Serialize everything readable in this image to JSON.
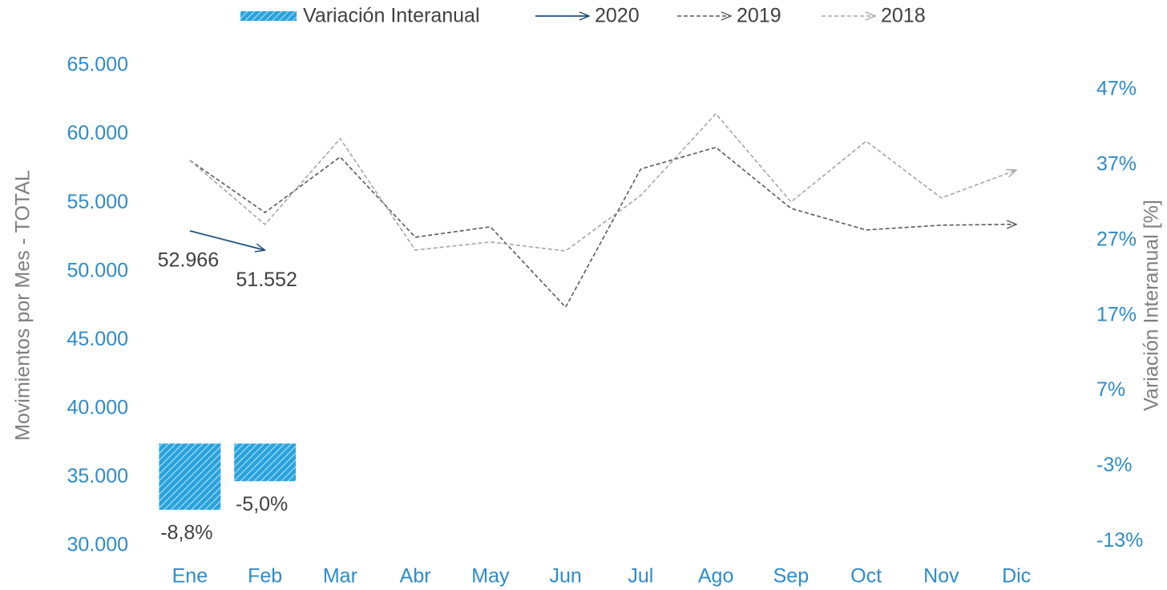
{
  "chart_data": {
    "type": "line",
    "categories": [
      "Ene",
      "Feb",
      "Mar",
      "Abr",
      "May",
      "Jun",
      "Jul",
      "Ago",
      "Sep",
      "Oct",
      "Nov",
      "Dic"
    ],
    "ylabel": "Movimientos por Mes - TOTAL",
    "y2label": "Variación Interanual [%]",
    "ylim": [
      30000,
      65000
    ],
    "yticks": [
      {
        "value": 30000,
        "label": "30.000"
      },
      {
        "value": 35000,
        "label": "35.000"
      },
      {
        "value": 40000,
        "label": "40.000"
      },
      {
        "value": 45000,
        "label": "45.000"
      },
      {
        "value": 50000,
        "label": "50.000"
      },
      {
        "value": 55000,
        "label": "55.000"
      },
      {
        "value": 60000,
        "label": "60.000"
      },
      {
        "value": 65000,
        "label": "65.000"
      }
    ],
    "y2lim": [
      -13.6,
      50.2
    ],
    "y2ticks": [
      {
        "value": -13,
        "label": "-13%"
      },
      {
        "value": -3,
        "label": "-3%"
      },
      {
        "value": 7,
        "label": "7%"
      },
      {
        "value": 17,
        "label": "17%"
      },
      {
        "value": 27,
        "label": "27%"
      },
      {
        "value": 37,
        "label": "37%"
      },
      {
        "value": 47,
        "label": "47%"
      }
    ],
    "legend": "top",
    "series": [
      {
        "name": "Variación Interanual",
        "type": "bar",
        "axis": "y2",
        "color": "#2aa3dd",
        "values": [
          -8.8,
          -5.0,
          null,
          null,
          null,
          null,
          null,
          null,
          null,
          null,
          null,
          null
        ],
        "value_labels": [
          "-8,8%",
          "-5,0%",
          null,
          null,
          null,
          null,
          null,
          null,
          null,
          null,
          null,
          null
        ]
      },
      {
        "name": "2020",
        "type": "line",
        "color": "#1f4e79",
        "dash": false,
        "values": [
          52966,
          51552,
          null,
          null,
          null,
          null,
          null,
          null,
          null,
          null,
          null,
          null
        ],
        "value_labels": [
          "52.966",
          "51.552",
          null,
          null,
          null,
          null,
          null,
          null,
          null,
          null,
          null,
          null
        ]
      },
      {
        "name": "2019",
        "type": "line",
        "color": "#595959",
        "dash": true,
        "values": [
          58100,
          54300,
          58350,
          52500,
          53260,
          47400,
          57470,
          59050,
          54600,
          53030,
          53380,
          53440
        ]
      },
      {
        "name": "2018",
        "type": "line",
        "color": "#a6a6a6",
        "dash": true,
        "values": [
          58100,
          53430,
          59690,
          51560,
          52150,
          51500,
          55540,
          61500,
          55070,
          59500,
          55360,
          57400
        ]
      }
    ]
  }
}
